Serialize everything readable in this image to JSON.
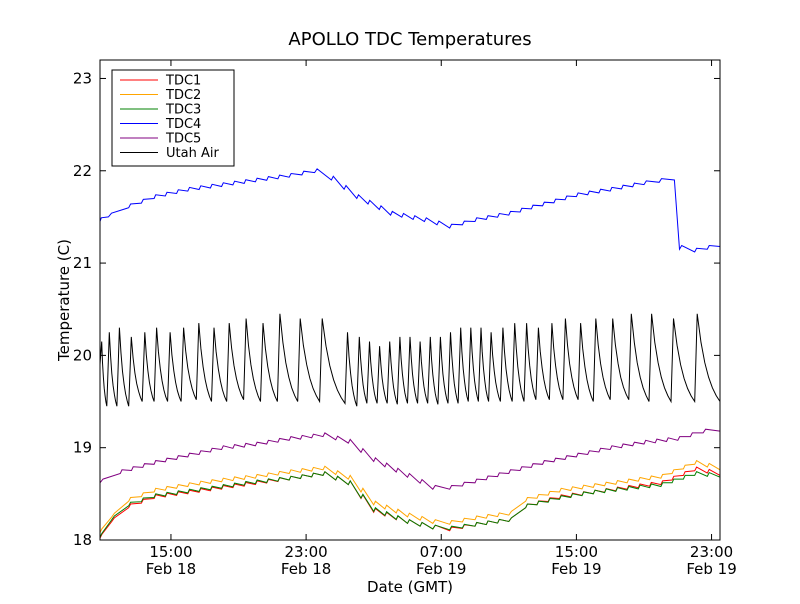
{
  "chart_data": {
    "type": "line",
    "title": "APOLLO TDC Temperatures",
    "xlabel": "Date (GMT)",
    "ylabel": "Temperature (C)",
    "xlim": [
      10.8,
      47.5
    ],
    "ylim": [
      18,
      23.2
    ],
    "grid": false,
    "legend_position": "top-left",
    "y_ticks": [
      {
        "value": 18,
        "label": "18"
      },
      {
        "value": 19,
        "label": "19"
      },
      {
        "value": 20,
        "label": "20"
      },
      {
        "value": 21,
        "label": "21"
      },
      {
        "value": 22,
        "label": "22"
      },
      {
        "value": 23,
        "label": "23"
      }
    ],
    "x_ticks": [
      {
        "value": 15,
        "time": "15:00",
        "date": "Feb 18"
      },
      {
        "value": 23,
        "time": "23:00",
        "date": "Feb 18"
      },
      {
        "value": 31,
        "time": "07:00",
        "date": "Feb 19"
      },
      {
        "value": 39,
        "time": "15:00",
        "date": "Feb 19"
      },
      {
        "value": 47,
        "time": "23:00",
        "date": "Feb 19"
      }
    ],
    "series": [
      {
        "name": "TDC1",
        "color": "#ff0000",
        "x": [
          10.8,
          11.5,
          12.5,
          14,
          16,
          18,
          20,
          22,
          24,
          25.5,
          27,
          29,
          30.5,
          31.5,
          33,
          35,
          36,
          38,
          40,
          42,
          44,
          46,
          47.5
        ],
        "y": [
          18.02,
          18.2,
          18.35,
          18.45,
          18.5,
          18.55,
          18.6,
          18.65,
          18.7,
          18.6,
          18.3,
          18.18,
          18.12,
          18.1,
          18.15,
          18.2,
          18.35,
          18.45,
          18.5,
          18.55,
          18.6,
          18.75,
          18.7
        ]
      },
      {
        "name": "TDC2",
        "color": "#ffa500",
        "x": [
          10.8,
          11.5,
          12.5,
          14,
          16,
          18,
          20,
          22,
          24,
          25.5,
          27,
          29,
          30.5,
          31.5,
          33,
          35,
          36,
          38,
          40,
          42,
          44,
          46,
          47.5
        ],
        "y": [
          18.08,
          18.25,
          18.42,
          18.52,
          18.58,
          18.63,
          18.67,
          18.72,
          18.76,
          18.66,
          18.38,
          18.25,
          18.18,
          18.17,
          18.22,
          18.27,
          18.42,
          18.52,
          18.57,
          18.62,
          18.67,
          18.82,
          18.76
        ]
      },
      {
        "name": "TDC3",
        "color": "#008000",
        "x": [
          10.8,
          11.5,
          12.5,
          14,
          16,
          18,
          20,
          22,
          24,
          25.5,
          27,
          29,
          30.5,
          31.5,
          33,
          35,
          36,
          38,
          40,
          42,
          44,
          46,
          47.5
        ],
        "y": [
          18.03,
          18.22,
          18.37,
          18.46,
          18.51,
          18.56,
          18.61,
          18.65,
          18.7,
          18.6,
          18.31,
          18.18,
          18.12,
          18.11,
          18.15,
          18.2,
          18.35,
          18.44,
          18.5,
          18.54,
          18.58,
          18.7,
          18.68
        ]
      },
      {
        "name": "TDC4",
        "color": "#0000ff",
        "x": [
          10.8,
          11.3,
          12.5,
          14,
          16,
          18,
          20,
          22,
          23.5,
          24.5,
          26,
          28,
          30,
          31.5,
          33,
          35,
          37,
          39,
          41,
          43,
          44.8,
          45.1,
          46,
          47.5
        ],
        "y": [
          21.45,
          21.5,
          21.6,
          21.7,
          21.78,
          21.83,
          21.88,
          21.93,
          21.98,
          21.9,
          21.7,
          21.52,
          21.45,
          21.38,
          21.45,
          21.52,
          21.62,
          21.72,
          21.78,
          21.85,
          21.9,
          21.15,
          21.12,
          21.18
        ]
      },
      {
        "name": "TDC5",
        "color": "#800080",
        "x": [
          10.8,
          12,
          14,
          16,
          18,
          20,
          22,
          24,
          25.5,
          27,
          29,
          30.5,
          31.5,
          33,
          35,
          37,
          39,
          41,
          43,
          45,
          46.5,
          47.5
        ],
        "y": [
          18.62,
          18.72,
          18.82,
          18.9,
          18.98,
          19.02,
          19.08,
          19.12,
          19.05,
          18.85,
          18.68,
          18.55,
          18.55,
          18.62,
          18.72,
          18.82,
          18.9,
          18.98,
          19.04,
          19.08,
          19.16,
          19.18
        ]
      },
      {
        "name": "Utah Air",
        "color": "#000000",
        "cycle_starts": [
          10.8,
          11.2,
          11.8,
          12.5,
          13.3,
          14.0,
          14.8,
          15.6,
          16.5,
          17.4,
          18.3,
          19.3,
          20.3,
          21.3,
          22.5,
          23.8,
          25.3,
          26.0,
          26.6,
          27.2,
          27.8,
          28.4,
          29.0,
          29.6,
          30.2,
          30.8,
          31.4,
          32.0,
          32.6,
          33.2,
          33.8,
          34.5,
          35.2,
          35.9,
          36.6,
          37.4,
          38.2,
          39.1,
          40.0,
          41.0,
          42.1,
          43.3,
          44.6,
          46.0
        ],
        "cycle_peaks": [
          20.15,
          20.25,
          20.3,
          20.2,
          20.25,
          20.3,
          20.25,
          20.3,
          20.35,
          20.3,
          20.35,
          20.4,
          20.35,
          20.45,
          20.4,
          20.4,
          20.25,
          20.2,
          20.15,
          20.1,
          20.15,
          20.2,
          20.2,
          20.15,
          20.2,
          20.2,
          20.25,
          20.3,
          20.3,
          20.3,
          20.25,
          20.3,
          20.35,
          20.35,
          20.3,
          20.35,
          20.4,
          20.35,
          20.4,
          20.4,
          20.45,
          20.45,
          20.4,
          20.45
        ],
        "cycle_troughs": [
          19.9,
          19.45,
          19.45,
          19.45,
          19.5,
          19.5,
          19.5,
          19.5,
          19.52,
          19.5,
          19.5,
          19.52,
          19.5,
          19.5,
          19.5,
          19.5,
          19.48,
          19.45,
          19.48,
          19.48,
          19.48,
          19.47,
          19.48,
          19.48,
          19.48,
          19.47,
          19.48,
          19.48,
          19.5,
          19.5,
          19.5,
          19.5,
          19.5,
          19.5,
          19.52,
          19.52,
          19.52,
          19.52,
          19.5,
          19.52,
          19.52,
          19.5,
          19.5,
          19.5
        ],
        "end": {
          "x": 47.5,
          "y": 19.5
        }
      }
    ]
  }
}
